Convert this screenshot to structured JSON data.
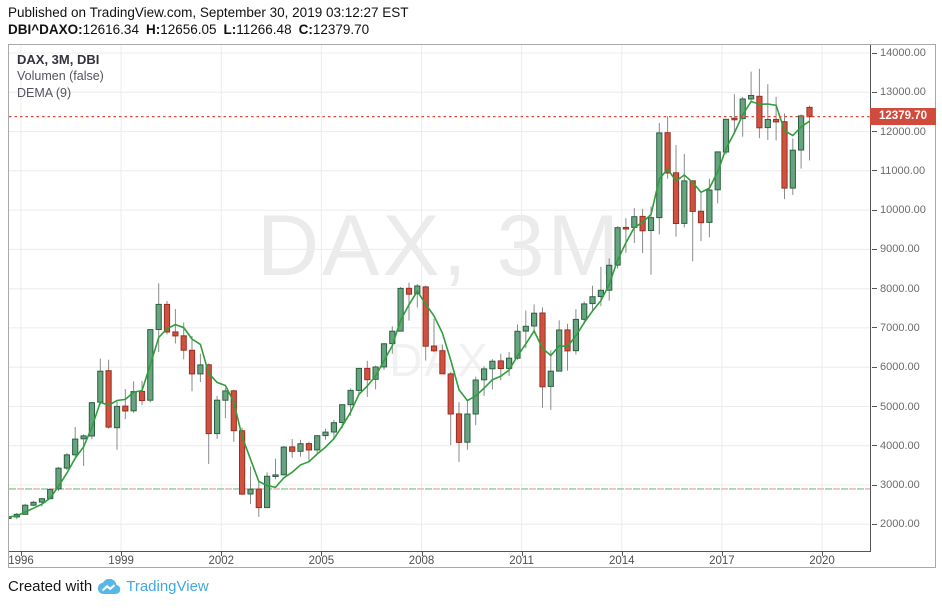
{
  "header": {
    "published_line": "Published on TradingView.com, September 30, 2019 03:12:27 EST",
    "symbol_label": "DBI^DAXO:",
    "open_value": "12616.34",
    "high_label": "H:",
    "high_value": "12656.05",
    "low_label": "L:",
    "low_value": "11266.48",
    "close_label": "C:",
    "close_value": "12379.70"
  },
  "legend": {
    "title": "DAX, 3M, DBI",
    "volume": "Volumen (false)",
    "dema": "DEMA (9)"
  },
  "watermark": {
    "line1": "DAX, 3M",
    "line2": "DAX"
  },
  "footer": {
    "created_with": "Created with",
    "brand": "TradingView"
  },
  "price_scale": {
    "last_price_label": "12379.70",
    "tick_labels": [
      "2000.00",
      "3000.00",
      "4000.00",
      "5000.00",
      "6000.00",
      "7000.00",
      "8000.00",
      "9000.00",
      "10000.00",
      "11000.00",
      "12000.00",
      "13000.00",
      "14000.00"
    ]
  },
  "time_scale": {
    "tick_labels": [
      "1996",
      "1999",
      "2002",
      "2005",
      "2008",
      "2011",
      "2014",
      "2017",
      "2020"
    ]
  },
  "colors": {
    "up_fill": "#66a37f",
    "up_border": "#2c5f43",
    "down_fill": "#d0513f",
    "down_border": "#992f23",
    "wick": "#8a8a8d",
    "dema_line": "#2f9e3b",
    "grid": "#ececec",
    "level_green": "#8ccb8f",
    "level_pink": "#f2aba5",
    "last_price_line": "#df4a38",
    "last_price_bg": "#d14b3d",
    "axis_text": "#6b6b6b",
    "frame": "#a9a9a9",
    "axis_line": "#555555",
    "brand_blue": "#3fa9e0",
    "logo_blue": "#59b7e8"
  },
  "chart_data": {
    "type": "candlestick",
    "title": "DAX, 3M, DBI",
    "symbol": "DAX",
    "interval": "3M",
    "overlay": "DEMA (9)",
    "dema_period": 9,
    "x_unit": "quarter",
    "start_quarter": "1995-Q3",
    "x_axis_years": [
      1996,
      1999,
      2002,
      2005,
      2008,
      2011,
      2014,
      2017,
      2020
    ],
    "value_axis": {
      "tick_min": 2000,
      "tick_max": 14000,
      "tick_step": 1000,
      "render_top_value": 14204,
      "render_bottom_value": 1320
    },
    "grid": true,
    "legend_position": "top-left",
    "last_price": 12379.7,
    "levels": [
      {
        "value": 2900,
        "style": "dashed-green-pink"
      }
    ],
    "candles_format": [
      "quarter",
      "open",
      "high",
      "low",
      "close"
    ],
    "candles": [
      [
        "1995-Q3",
        2160,
        2230,
        2100,
        2187
      ],
      [
        "1995-Q4",
        2187,
        2290,
        2130,
        2254
      ],
      [
        "1996-Q1",
        2254,
        2520,
        2238,
        2486
      ],
      [
        "1996-Q2",
        2488,
        2594,
        2462,
        2561
      ],
      [
        "1996-Q3",
        2565,
        2674,
        2453,
        2652
      ],
      [
        "1996-Q4",
        2655,
        2912,
        2637,
        2889
      ],
      [
        "1997-Q1",
        2901,
        3460,
        2848,
        3428
      ],
      [
        "1997-Q2",
        3430,
        3810,
        3382,
        3766
      ],
      [
        "1997-Q3",
        3770,
        4478,
        3721,
        4170
      ],
      [
        "1997-Q4",
        4175,
        4288,
        3487,
        4250
      ],
      [
        "1998-Q1",
        4250,
        5117,
        4165,
        5097
      ],
      [
        "1998-Q2",
        5107,
        6217,
        5049,
        5897
      ],
      [
        "1998-Q3",
        5910,
        6190,
        4433,
        4475
      ],
      [
        "1998-Q4",
        4460,
        5120,
        3896,
        5002
      ],
      [
        "1999-Q1",
        5010,
        5443,
        4678,
        4884
      ],
      [
        "1999-Q2",
        4890,
        5640,
        4840,
        5379
      ],
      [
        "1999-Q3",
        5385,
        5652,
        5034,
        5150
      ],
      [
        "1999-Q4",
        5160,
        6958,
        5100,
        6958
      ],
      [
        "2000-Q1",
        6961,
        8136,
        6388,
        7599
      ],
      [
        "2000-Q2",
        7600,
        7685,
        6834,
        6898
      ],
      [
        "2000-Q3",
        6900,
        7480,
        6604,
        6798
      ],
      [
        "2000-Q4",
        6800,
        7137,
        6200,
        6434
      ],
      [
        "2001-Q1",
        6430,
        6795,
        5388,
        5830
      ],
      [
        "2001-Q2",
        5830,
        6341,
        5622,
        6058
      ],
      [
        "2001-Q3",
        6060,
        6095,
        3539,
        4308
      ],
      [
        "2001-Q4",
        4310,
        5270,
        4175,
        5160
      ],
      [
        "2002-Q1",
        5160,
        5467,
        4706,
        5397
      ],
      [
        "2002-Q2",
        5400,
        5427,
        4099,
        4383
      ],
      [
        "2002-Q3",
        4380,
        4461,
        2743,
        2769
      ],
      [
        "2002-Q4",
        2770,
        3469,
        2519,
        2893
      ],
      [
        "2003-Q1",
        2895,
        3103,
        2188,
        2424
      ],
      [
        "2003-Q2",
        2425,
        3325,
        2423,
        3221
      ],
      [
        "2003-Q3",
        3222,
        3669,
        3147,
        3257
      ],
      [
        "2003-Q4",
        3260,
        3996,
        3247,
        3965
      ],
      [
        "2004-Q1",
        3970,
        4175,
        3692,
        3857
      ],
      [
        "2004-Q2",
        3860,
        4151,
        3723,
        4053
      ],
      [
        "2004-Q3",
        4055,
        4104,
        3618,
        3893
      ],
      [
        "2004-Q4",
        3895,
        4272,
        3815,
        4256
      ],
      [
        "2005-Q1",
        4260,
        4435,
        4157,
        4348
      ],
      [
        "2005-Q2",
        4350,
        4658,
        4154,
        4586
      ],
      [
        "2005-Q3",
        4590,
        5051,
        4444,
        5044
      ],
      [
        "2005-Q4",
        5045,
        5458,
        4762,
        5408
      ],
      [
        "2006-Q1",
        5410,
        5972,
        5292,
        5970
      ],
      [
        "2006-Q2",
        5970,
        6162,
        5243,
        5683
      ],
      [
        "2006-Q3",
        5690,
        6038,
        5437,
        6004
      ],
      [
        "2006-Q4",
        6010,
        6617,
        5930,
        6597
      ],
      [
        "2007-Q1",
        6600,
        7040,
        6340,
        6917
      ],
      [
        "2007-Q2",
        6920,
        8040,
        6911,
        8007
      ],
      [
        "2007-Q3",
        8010,
        8151,
        7190,
        7861
      ],
      [
        "2007-Q4",
        7870,
        8118,
        7517,
        8067
      ],
      [
        "2008-Q1",
        8045,
        8081,
        6167,
        6535
      ],
      [
        "2008-Q2",
        6540,
        7231,
        6382,
        6418
      ],
      [
        "2008-Q3",
        6420,
        6578,
        5860,
        5831
      ],
      [
        "2008-Q4",
        5830,
        5876,
        4014,
        4810
      ],
      [
        "2009-Q1",
        4810,
        5111,
        3589,
        4085
      ],
      [
        "2009-Q2",
        4090,
        5177,
        3897,
        4809
      ],
      [
        "2009-Q3",
        4810,
        5760,
        4524,
        5675
      ],
      [
        "2009-Q4",
        5680,
        6026,
        5265,
        5957
      ],
      [
        "2010-Q1",
        5960,
        6204,
        5433,
        6154
      ],
      [
        "2010-Q2",
        6160,
        6341,
        5670,
        5966
      ],
      [
        "2010-Q3",
        5970,
        6386,
        5780,
        6229
      ],
      [
        "2010-Q4",
        6230,
        7088,
        6188,
        6914
      ],
      [
        "2011-Q1",
        6920,
        7441,
        6483,
        7041
      ],
      [
        "2011-Q2",
        7050,
        7600,
        6869,
        7376
      ],
      [
        "2011-Q3",
        7380,
        7523,
        4966,
        5502
      ],
      [
        "2011-Q4",
        5510,
        6430,
        4914,
        5898
      ],
      [
        "2012-Q1",
        5900,
        7194,
        5895,
        6947
      ],
      [
        "2012-Q2",
        6950,
        7102,
        5914,
        6416
      ],
      [
        "2012-Q3",
        6420,
        7478,
        6326,
        7216
      ],
      [
        "2012-Q4",
        7220,
        7672,
        7100,
        7612
      ],
      [
        "2013-Q1",
        7620,
        8074,
        7459,
        7795
      ],
      [
        "2013-Q2",
        7800,
        8557,
        7553,
        7959
      ],
      [
        "2013-Q3",
        7960,
        8770,
        7692,
        8594
      ],
      [
        "2013-Q4",
        8600,
        9589,
        8516,
        9552
      ],
      [
        "2014-Q1",
        9560,
        9794,
        8914,
        9556
      ],
      [
        "2014-Q2",
        9560,
        10051,
        9166,
        9833
      ],
      [
        "2014-Q3",
        9840,
        10029,
        8909,
        9474
      ],
      [
        "2014-Q4",
        9480,
        10093,
        8355,
        9806
      ],
      [
        "2015-Q1",
        9810,
        12219,
        9382,
        11966
      ],
      [
        "2015-Q2",
        11970,
        12390,
        10800,
        10945
      ],
      [
        "2015-Q3",
        10950,
        11656,
        9325,
        9660
      ],
      [
        "2015-Q4",
        9662,
        11430,
        9560,
        10743
      ],
      [
        "2016-Q1",
        10745,
        10750,
        8699,
        9966
      ],
      [
        "2016-Q2",
        9970,
        10474,
        9214,
        9680
      ],
      [
        "2016-Q3",
        9685,
        10802,
        9304,
        10511
      ],
      [
        "2016-Q4",
        10515,
        11481,
        10174,
        11481
      ],
      [
        "2017-Q1",
        11480,
        12313,
        11415,
        12313
      ],
      [
        "2017-Q2",
        12340,
        12952,
        11942,
        12325
      ],
      [
        "2017-Q3",
        12330,
        12880,
        11869,
        12829
      ],
      [
        "2017-Q4",
        12830,
        13526,
        12745,
        12918
      ],
      [
        "2018-Q1",
        12898,
        13597,
        11831,
        12097
      ],
      [
        "2018-Q2",
        12100,
        13204,
        11787,
        12306
      ],
      [
        "2018-Q3",
        12310,
        12886,
        11776,
        12247
      ],
      [
        "2018-Q4",
        12250,
        12461,
        10279,
        10559
      ],
      [
        "2019-Q1",
        10560,
        11823,
        10387,
        11526
      ],
      [
        "2019-Q2",
        11530,
        12438,
        11056,
        12399
      ],
      [
        "2019-Q3",
        12616.34,
        12656.05,
        11266.48,
        12379.7
      ]
    ]
  }
}
